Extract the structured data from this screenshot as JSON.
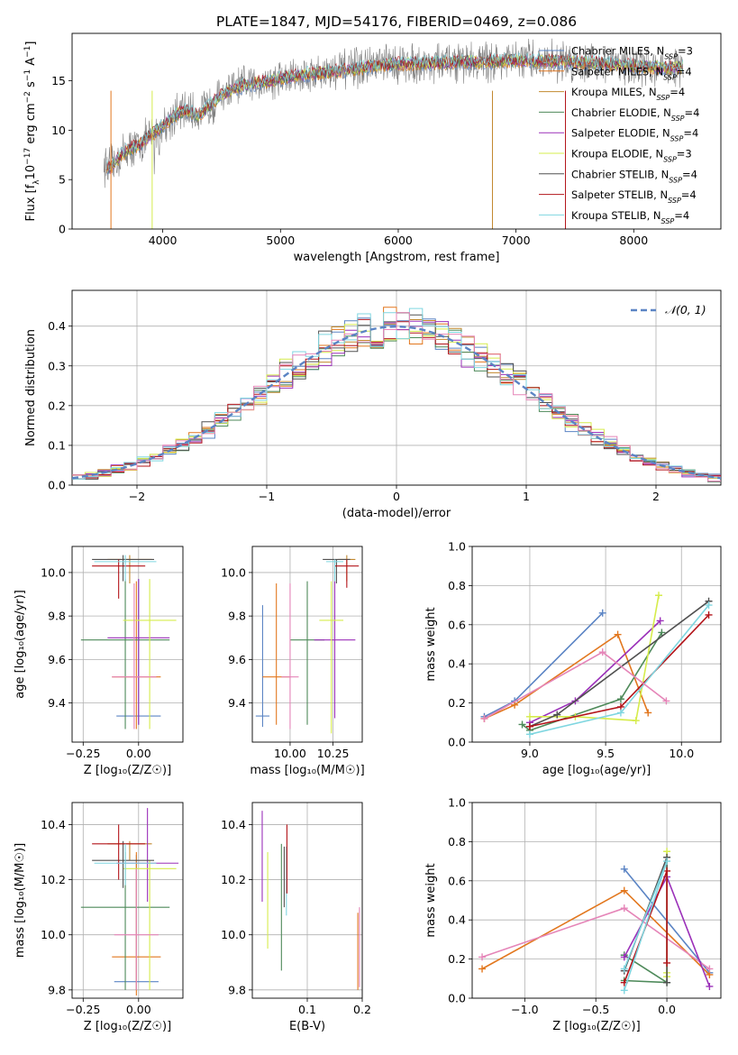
{
  "figure_title": "PLATE=1847, MJD=54176, FIBERID=0469, z=0.086",
  "colors": {
    "c1": "#5b84c4",
    "c2": "#e2771e",
    "c3": "#c2892f",
    "c4": "#4e8a5a",
    "c5": "#9b30b9",
    "c6": "#d6ec4c",
    "c7": "#505050",
    "c8": "#b3141a",
    "c9": "#7fd6e0",
    "c10": "#e585b8",
    "gray": "#808080",
    "norm": "#5b84c4"
  },
  "chart_data": [
    {
      "id": "spectrum",
      "type": "line",
      "title": "PLATE=1847, MJD=54176, FIBERID=0469, z=0.086",
      "xlabel": "wavelength [Angstrom, rest frame]",
      "ylabel_parts": [
        "Flux [f",
        "λ",
        "10",
        "−17",
        " erg cm",
        "−2",
        " s",
        "−1",
        " A",
        "−1",
        "]"
      ],
      "xlim": [
        3230,
        8740
      ],
      "ylim": [
        0,
        19.8
      ],
      "xticks": [
        4000,
        5000,
        6000,
        7000,
        8000
      ],
      "yticks": [
        0,
        5,
        10,
        15
      ],
      "grid": false,
      "legend_position": "upper-right",
      "continuum": {
        "x": [
          3500,
          3550,
          3600,
          3650,
          3700,
          3800,
          3900,
          4000,
          4100,
          4200,
          4300,
          4400,
          4500,
          4600,
          4800,
          5000,
          5200,
          5500,
          5800,
          6000,
          6300,
          6600,
          6900,
          7200,
          7500,
          7800,
          8000,
          8200,
          8400
        ],
        "y": [
          6.5,
          6.2,
          6.8,
          7.5,
          8.0,
          8.5,
          9.5,
          10.5,
          11.5,
          12.0,
          11.5,
          12.5,
          13.5,
          14.2,
          14.8,
          15.2,
          15.6,
          16.0,
          16.5,
          16.7,
          16.8,
          16.9,
          17.0,
          17.0,
          16.9,
          16.7,
          16.5,
          16.4,
          16.3
        ]
      },
      "series": [
        {
          "label": "Chabrier MILES, N",
          "sub": "SSP",
          "tail": "=3",
          "color": "c1"
        },
        {
          "label": "Salpeter MILES, N",
          "sub": "SSP",
          "tail": "=4",
          "color": "c2"
        },
        {
          "label": "Kroupa MILES, N",
          "sub": "SSP",
          "tail": "=4",
          "color": "c3"
        },
        {
          "label": "Chabrier ELODIE, N",
          "sub": "SSP",
          "tail": "=4",
          "color": "c4"
        },
        {
          "label": "Salpeter ELODIE, N",
          "sub": "SSP",
          "tail": "=4",
          "color": "c5"
        },
        {
          "label": "Kroupa ELODIE, N",
          "sub": "SSP",
          "tail": "=3",
          "color": "c6"
        },
        {
          "label": "Chabrier STELIB, N",
          "sub": "SSP",
          "tail": "=4",
          "color": "c7"
        },
        {
          "label": "Salpeter STELIB, N",
          "sub": "SSP",
          "tail": "=4",
          "color": "c8"
        },
        {
          "label": "Kroupa STELIB, N",
          "sub": "SSP",
          "tail": "=4",
          "color": "c9"
        }
      ]
    },
    {
      "id": "residuals",
      "type": "histogram",
      "xlabel": "(data-model)/error",
      "ylabel": "Normed distribution",
      "xlim": [
        -2.5,
        2.5
      ],
      "ylim": [
        0,
        0.49
      ],
      "xticks": [
        -2,
        -1,
        0,
        1,
        2
      ],
      "xtick_labels": [
        "−2",
        "−1",
        "0",
        "1",
        "2"
      ],
      "yticks": [
        0.0,
        0.1,
        0.2,
        0.3,
        0.4
      ],
      "ytick_labels": [
        "0.0",
        "0.1",
        "0.2",
        "0.3",
        "0.4"
      ],
      "grid": true,
      "legend_position": "upper-right",
      "legend_label": "𝒩(0, 1)",
      "bin_width": 0.1
    },
    {
      "id": "age_vs_Z",
      "type": "errorbar",
      "xlabel": "Z [log₁₀(Z/Z☉)]",
      "ylabel": "age  [log₁₀(age/yr)]",
      "xlim": [
        -0.3,
        0.2
      ],
      "ylim": [
        9.22,
        10.12
      ],
      "xticks": [
        -0.25,
        0.0
      ],
      "xtick_labels": [
        "−0.25",
        "0.00"
      ],
      "yticks": [
        9.4,
        9.6,
        9.8,
        10.0
      ],
      "ytick_labels": [
        "9.4",
        "9.6",
        "9.8",
        "10.0"
      ],
      "grid": true,
      "points": [
        {
          "x": 0.0,
          "xerr": 0.1,
          "y": 9.34,
          "y0": 9.3,
          "y1": 9.97,
          "color": "c1"
        },
        {
          "x": -0.01,
          "xerr": 0.11,
          "y": 9.52,
          "y0": 9.28,
          "y1": 9.96,
          "color": "c2"
        },
        {
          "x": -0.04,
          "xerr": 0.1,
          "y": 10.06,
          "y0": 9.95,
          "y1": 10.08,
          "color": "c3"
        },
        {
          "x": -0.06,
          "xerr": 0.2,
          "y": 9.69,
          "y0": 9.28,
          "y1": 9.97,
          "color": "c4"
        },
        {
          "x": 0.0,
          "xerr": 0.14,
          "y": 9.7,
          "y0": 9.3,
          "y1": 9.97,
          "color": "c5"
        },
        {
          "x": 0.05,
          "xerr": 0.12,
          "y": 9.78,
          "y0": 9.28,
          "y1": 9.97,
          "color": "c6"
        },
        {
          "x": -0.07,
          "xerr": 0.14,
          "y": 10.06,
          "y0": 9.96,
          "y1": 10.08,
          "color": "c7"
        },
        {
          "x": -0.09,
          "xerr": 0.12,
          "y": 10.03,
          "y0": 9.88,
          "y1": 10.06,
          "color": "c8"
        },
        {
          "x": -0.06,
          "xerr": 0.14,
          "y": 10.05,
          "y0": 9.96,
          "y1": 10.08,
          "color": "c9"
        },
        {
          "x": -0.02,
          "xerr": 0.1,
          "y": 9.52,
          "y0": 9.28,
          "y1": 9.95,
          "color": "c10"
        }
      ]
    },
    {
      "id": "age_vs_mass",
      "type": "errorbar",
      "xlabel": "mass [log₁₀(M/M☉)]",
      "ylabel": "",
      "xlim": [
        9.78,
        10.42
      ],
      "ylim": [
        9.22,
        10.12
      ],
      "xticks": [
        10.0,
        10.25
      ],
      "xtick_labels": [
        "10.00",
        "10.25"
      ],
      "yticks": [
        9.4,
        9.6,
        9.8,
        10.0
      ],
      "ytick_labels": [
        "9.4",
        "9.6",
        "9.8",
        "10.0"
      ],
      "grid": true,
      "points": [
        {
          "x": 9.84,
          "xerr": 0.04,
          "y": 9.34,
          "y0": 9.29,
          "y1": 9.85,
          "color": "c1"
        },
        {
          "x": 9.92,
          "xerr": 0.08,
          "y": 9.52,
          "y0": 9.3,
          "y1": 9.95,
          "color": "c2"
        },
        {
          "x": 10.33,
          "xerr": 0.05,
          "y": 10.06,
          "y0": 9.96,
          "y1": 10.08,
          "color": "c3"
        },
        {
          "x": 10.1,
          "xerr": 0.1,
          "y": 9.69,
          "y0": 9.3,
          "y1": 9.96,
          "color": "c4"
        },
        {
          "x": 10.26,
          "xerr": 0.12,
          "y": 9.69,
          "y0": 9.33,
          "y1": 9.96,
          "color": "c5"
        },
        {
          "x": 10.24,
          "xerr": 0.07,
          "y": 9.78,
          "y0": 9.26,
          "y1": 9.96,
          "color": "c6"
        },
        {
          "x": 10.27,
          "xerr": 0.08,
          "y": 10.06,
          "y0": 9.95,
          "y1": 10.06,
          "color": "c7"
        },
        {
          "x": 10.33,
          "xerr": 0.07,
          "y": 10.03,
          "y0": 9.93,
          "y1": 10.06,
          "color": "c8"
        },
        {
          "x": 10.26,
          "xerr": 0.05,
          "y": 10.05,
          "y0": 9.96,
          "y1": 10.06,
          "color": "c9"
        },
        {
          "x": 10.0,
          "xerr": 0.05,
          "y": 9.52,
          "y0": 9.28,
          "y1": 9.95,
          "color": "c10"
        }
      ]
    },
    {
      "id": "weight_vs_age",
      "type": "line",
      "xlabel": "age  [log₁₀(age/yr)]",
      "ylabel": "mass weight",
      "xlim": [
        8.62,
        10.26
      ],
      "ylim": [
        0,
        1.0
      ],
      "xticks": [
        9.0,
        9.5,
        10.0
      ],
      "xtick_labels": [
        "9.0",
        "9.5",
        "10.0"
      ],
      "yticks": [
        0.0,
        0.2,
        0.4,
        0.6,
        0.8,
        1.0
      ],
      "ytick_labels": [
        "0.0",
        "0.2",
        "0.4",
        "0.6",
        "0.8",
        "1.0"
      ],
      "grid": true,
      "series": [
        {
          "color": "c1",
          "x": [
            8.7,
            8.9,
            9.48
          ],
          "y": [
            0.13,
            0.21,
            0.66
          ]
        },
        {
          "color": "c2",
          "x": [
            8.7,
            8.9,
            9.58,
            9.78
          ],
          "y": [
            0.12,
            0.19,
            0.55,
            0.15
          ]
        },
        {
          "color": "c4",
          "x": [
            8.95,
            9.0,
            9.6,
            9.87
          ],
          "y": [
            0.09,
            0.06,
            0.22,
            0.56
          ]
        },
        {
          "color": "c5",
          "x": [
            9.0,
            9.3,
            9.86
          ],
          "y": [
            0.1,
            0.21,
            0.62
          ]
        },
        {
          "color": "c6",
          "x": [
            9.0,
            9.3,
            9.7,
            9.85
          ],
          "y": [
            0.13,
            0.13,
            0.11,
            0.75
          ]
        },
        {
          "color": "c7",
          "x": [
            9.0,
            9.18,
            10.18
          ],
          "y": [
            0.08,
            0.14,
            0.72
          ]
        },
        {
          "color": "c8",
          "x": [
            9.0,
            9.6,
            10.18
          ],
          "y": [
            0.08,
            0.18,
            0.65
          ]
        },
        {
          "color": "c9",
          "x": [
            9.0,
            9.6,
            10.18
          ],
          "y": [
            0.04,
            0.15,
            0.7
          ]
        },
        {
          "color": "c10",
          "x": [
            8.7,
            9.48,
            9.9
          ],
          "y": [
            0.12,
            0.46,
            0.21
          ]
        }
      ]
    },
    {
      "id": "mass_vs_Z",
      "type": "errorbar",
      "xlabel": "Z [log₁₀(Z/Z☉)]",
      "ylabel": "mass [log₁₀(M/M☉)]",
      "xlim": [
        -0.3,
        0.2
      ],
      "ylim": [
        9.77,
        10.48
      ],
      "xticks": [
        -0.25,
        0.0
      ],
      "xtick_labels": [
        "−0.25",
        "0.00"
      ],
      "yticks": [
        9.8,
        10.0,
        10.2,
        10.4
      ],
      "ytick_labels": [
        "9.8",
        "10.0",
        "10.2",
        "10.4"
      ],
      "grid": true,
      "points": [
        {
          "x": -0.01,
          "xerr": 0.1,
          "y": 9.83,
          "y0": 9.8,
          "y1": 10.29,
          "color": "c1"
        },
        {
          "x": -0.01,
          "xerr": 0.11,
          "y": 9.92,
          "y0": 9.78,
          "y1": 10.3,
          "color": "c2"
        },
        {
          "x": -0.04,
          "xerr": 0.1,
          "y": 10.33,
          "y0": 10.27,
          "y1": 10.34,
          "color": "c3"
        },
        {
          "x": -0.06,
          "xerr": 0.2,
          "y": 10.1,
          "y0": 9.8,
          "y1": 10.3,
          "color": "c4"
        },
        {
          "x": 0.04,
          "xerr": 0.14,
          "y": 10.26,
          "y0": 10.12,
          "y1": 10.46,
          "color": "c5"
        },
        {
          "x": 0.05,
          "xerr": 0.12,
          "y": 10.24,
          "y0": 9.8,
          "y1": 10.27,
          "color": "c6"
        },
        {
          "x": -0.07,
          "xerr": 0.14,
          "y": 10.27,
          "y0": 10.17,
          "y1": 10.34,
          "color": "c7"
        },
        {
          "x": -0.09,
          "xerr": 0.12,
          "y": 10.33,
          "y0": 10.2,
          "y1": 10.4,
          "color": "c8"
        },
        {
          "x": -0.06,
          "xerr": 0.14,
          "y": 10.26,
          "y0": 10.18,
          "y1": 10.33,
          "color": "c9"
        },
        {
          "x": -0.01,
          "xerr": 0.1,
          "y": 10.0,
          "y0": 9.8,
          "y1": 10.24,
          "color": "c10"
        }
      ]
    },
    {
      "id": "mass_vs_EBV",
      "type": "errorbar",
      "xlabel": "E(B-V)",
      "ylabel": "",
      "xlim": [
        0.0,
        0.2
      ],
      "ylim": [
        9.77,
        10.48
      ],
      "xticks": [
        0.1,
        0.2
      ],
      "xtick_labels": [
        "0.1",
        "0.2"
      ],
      "yticks": [
        9.8,
        10.0,
        10.2,
        10.4
      ],
      "ytick_labels": [
        "9.8",
        "10.0",
        "10.2",
        "10.4"
      ],
      "grid": true,
      "points": [
        {
          "x": 0.018,
          "y0": 10.12,
          "y1": 10.45,
          "color": "c5"
        },
        {
          "x": 0.028,
          "y0": 9.95,
          "y1": 10.3,
          "color": "c6"
        },
        {
          "x": 0.053,
          "y0": 9.87,
          "y1": 10.33,
          "color": "c4"
        },
        {
          "x": 0.058,
          "y0": 10.1,
          "y1": 10.32,
          "color": "c7"
        },
        {
          "x": 0.062,
          "y0": 10.07,
          "y1": 10.32,
          "color": "c9"
        },
        {
          "x": 0.063,
          "y0": 10.15,
          "y1": 10.4,
          "color": "c8"
        },
        {
          "x": 0.192,
          "y0": 9.8,
          "y1": 10.08,
          "color": "c2"
        },
        {
          "x": 0.195,
          "y0": 9.81,
          "y1": 10.1,
          "color": "c10"
        }
      ]
    },
    {
      "id": "weight_vs_Z",
      "type": "line",
      "xlabel": "Z [log₁₀(Z/Z☉)]",
      "ylabel": "mass weight",
      "xlim": [
        -1.37,
        0.38
      ],
      "ylim": [
        0,
        1.0
      ],
      "xticks": [
        -1.0,
        -0.5,
        0.0
      ],
      "xtick_labels": [
        "−1.0",
        "−0.5",
        "0.0"
      ],
      "yticks": [
        0.0,
        0.2,
        0.4,
        0.6,
        0.8,
        1.0
      ],
      "ytick_labels": [
        "0.0",
        "0.2",
        "0.4",
        "0.6",
        "0.8",
        "1.0"
      ],
      "grid": true,
      "series": [
        {
          "color": "c1",
          "x": [
            -0.3,
            0.3
          ],
          "y": [
            0.66,
            0.13
          ]
        },
        {
          "color": "c2",
          "x": [
            -1.3,
            -0.3,
            0.3
          ],
          "y": [
            0.15,
            0.55,
            0.12
          ]
        },
        {
          "color": "c10",
          "x": [
            -1.3,
            -0.3,
            0.3
          ],
          "y": [
            0.21,
            0.46,
            0.15
          ]
        },
        {
          "color": "c4",
          "x": [
            -0.3,
            0.0,
            -0.3
          ],
          "y": [
            0.22,
            0.08,
            0.09
          ]
        },
        {
          "color": "c5",
          "x": [
            -0.3,
            0.0,
            0.3
          ],
          "y": [
            0.21,
            0.62,
            0.06
          ]
        },
        {
          "color": "c6",
          "x": [
            0.0,
            0.0,
            0.0
          ],
          "y": [
            0.11,
            0.75,
            0.13
          ]
        },
        {
          "color": "c7",
          "x": [
            -0.3,
            0.0,
            0.0
          ],
          "y": [
            0.14,
            0.72,
            0.08
          ]
        },
        {
          "color": "c8",
          "x": [
            -0.3,
            0.0,
            0.0
          ],
          "y": [
            0.08,
            0.65,
            0.18
          ]
        },
        {
          "color": "c9",
          "x": [
            -0.3,
            0.0,
            -0.3
          ],
          "y": [
            0.04,
            0.7,
            0.15
          ]
        }
      ]
    }
  ]
}
